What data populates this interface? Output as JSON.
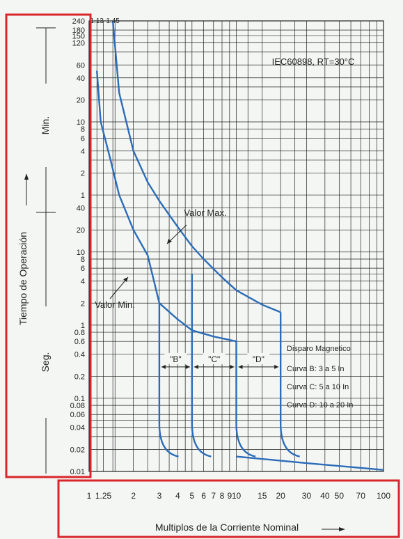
{
  "chart_data": {
    "type": "line",
    "title": "",
    "standard_note": "IEC60898, RT=30°C",
    "xlabel": "Multiplos de la Corriente Nominal",
    "x_scale": "log",
    "xlim": [
      1,
      100
    ],
    "x_ticks": [
      {
        "v": 1,
        "label": "1"
      },
      {
        "v": 1.25,
        "label": "1.25"
      },
      {
        "v": 2,
        "label": "2"
      },
      {
        "v": 3,
        "label": "3"
      },
      {
        "v": 4,
        "label": "4"
      },
      {
        "v": 5,
        "label": "5"
      },
      {
        "v": 6,
        "label": "6"
      },
      {
        "v": 7,
        "label": "7"
      },
      {
        "v": 8,
        "label": "8"
      },
      {
        "v": 9,
        "label": "9"
      },
      {
        "v": 10,
        "label": "10"
      },
      {
        "v": 15,
        "label": "15"
      },
      {
        "v": 20,
        "label": "20"
      },
      {
        "v": 30,
        "label": "30"
      },
      {
        "v": 40,
        "label": "40"
      },
      {
        "v": 50,
        "label": "50"
      },
      {
        "v": 70,
        "label": "70"
      },
      {
        "v": 100,
        "label": "100"
      }
    ],
    "top_ticks": [
      {
        "v": 1.13,
        "label": "1.13"
      },
      {
        "v": 1.45,
        "label": "1.45"
      }
    ],
    "ylabel": "Tiempo de Operación",
    "y_scale": "log",
    "ylim_seconds": [
      0.01,
      14400
    ],
    "y_ticks_seconds": [
      {
        "v": 0.01,
        "label": "0.01"
      },
      {
        "v": 0.02,
        "label": "0.02"
      },
      {
        "v": 0.04,
        "label": "0.04"
      },
      {
        "v": 0.06,
        "label": "0.06"
      },
      {
        "v": 0.08,
        "label": "0.08"
      },
      {
        "v": 0.1,
        "label": "0.1"
      },
      {
        "v": 0.2,
        "label": "0.2"
      },
      {
        "v": 0.4,
        "label": "0.4"
      },
      {
        "v": 0.6,
        "label": "0.6"
      },
      {
        "v": 0.8,
        "label": "0.8"
      },
      {
        "v": 1,
        "label": "1"
      },
      {
        "v": 2,
        "label": "2"
      },
      {
        "v": 4,
        "label": "4"
      },
      {
        "v": 6,
        "label": "6"
      },
      {
        "v": 8,
        "label": "8"
      },
      {
        "v": 10,
        "label": "10"
      },
      {
        "v": 20,
        "label": "20"
      },
      {
        "v": 40,
        "label": "40"
      }
    ],
    "y_ticks_minutes": [
      {
        "v": 1,
        "label": "1"
      },
      {
        "v": 2,
        "label": "2"
      },
      {
        "v": 4,
        "label": "4"
      },
      {
        "v": 6,
        "label": "6"
      },
      {
        "v": 8,
        "label": "8"
      },
      {
        "v": 10,
        "label": "10"
      },
      {
        "v": 20,
        "label": "20"
      },
      {
        "v": 40,
        "label": "40"
      },
      {
        "v": 60,
        "label": "60"
      },
      {
        "v": 120,
        "label": "120"
      },
      {
        "v": 150,
        "label": "150"
      },
      {
        "v": 180,
        "label": "180"
      },
      {
        "v": 240,
        "label": "240"
      }
    ],
    "y_unit_labels": {
      "minutes": "Min.",
      "seconds": "Seg."
    },
    "series": [
      {
        "name": "Valor Max.",
        "points": [
          [
            1.45,
            14400
          ],
          [
            1.6,
            1500
          ],
          [
            2,
            240
          ],
          [
            2.5,
            90
          ],
          [
            3,
            50
          ],
          [
            4,
            22
          ],
          [
            5,
            12
          ],
          [
            6,
            8
          ],
          [
            8,
            4.5
          ],
          [
            10,
            3
          ],
          [
            15,
            1.9
          ],
          [
            20,
            1.5
          ]
        ],
        "magnetic_drops": [
          [
            5,
            5
          ],
          [
            20,
            1.4
          ]
        ]
      },
      {
        "name": "Valor Min.",
        "points": [
          [
            1.13,
            3000
          ],
          [
            1.2,
            600
          ],
          [
            1.4,
            180
          ],
          [
            1.6,
            60
          ],
          [
            2,
            20
          ],
          [
            2.5,
            9
          ],
          [
            3,
            2
          ],
          [
            4,
            1.2
          ],
          [
            5,
            0.85
          ],
          [
            7,
            0.7
          ],
          [
            10,
            0.6
          ]
        ],
        "magnetic_drops": [
          [
            3,
            2
          ],
          [
            10,
            0.62
          ]
        ]
      }
    ],
    "instantaneous_tail": [
      [
        3,
        0.04
      ],
      [
        4,
        0.02
      ],
      [
        10,
        0.016
      ],
      [
        30,
        0.013
      ],
      [
        100,
        0.0105
      ]
    ],
    "zones": [
      {
        "label": "\"B\"",
        "from": 3,
        "to": 5
      },
      {
        "label": "\"C\"",
        "from": 5,
        "to": 10
      },
      {
        "label": "\"D\"",
        "from": 10,
        "to": 20
      }
    ],
    "legend_title": "Disparo Magnetico",
    "legend_items": [
      "Curva B: 3 a 5 In",
      "Curva C: 5 a 10 In",
      "Curva D: 10 a 20 In"
    ],
    "colors": {
      "curve": "#2b6cb8",
      "grid": "#222222",
      "highlight": "#d9262b"
    }
  }
}
